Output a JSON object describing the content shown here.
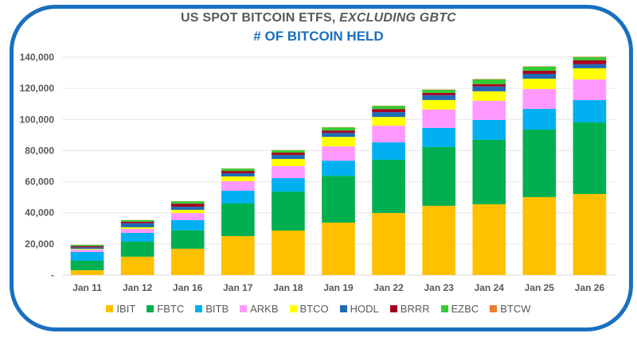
{
  "chart_data": {
    "type": "bar",
    "stacked": true,
    "title": "US SPOT BITCOIN ETFS,",
    "title_italic": "EXCLUDING GBTC",
    "subtitle": "# OF BITCOIN HELD",
    "xlabel": "",
    "ylabel": "",
    "ylim": [
      0,
      140000
    ],
    "yticks": [
      0,
      20000,
      40000,
      60000,
      80000,
      100000,
      120000,
      140000
    ],
    "ytick_labels": [
      "-",
      "20,000",
      "40,000",
      "60,000",
      "80,000",
      "100,000",
      "120,000",
      "140,000"
    ],
    "grid": true,
    "legend_position": "bottom",
    "categories": [
      "Jan 11",
      "Jan 12",
      "Jan 16",
      "Jan 17",
      "Jan 18",
      "Jan 19",
      "Jan 22",
      "Jan 23",
      "Jan 24",
      "Jan 25",
      "Jan 26"
    ],
    "series": [
      {
        "name": "IBIT",
        "color": "#ffc000",
        "values": [
          3100,
          11800,
          16900,
          25000,
          28600,
          33700,
          39900,
          44500,
          45500,
          50100,
          52100
        ]
      },
      {
        "name": "FBTC",
        "color": "#00b050",
        "values": [
          6100,
          9700,
          11800,
          21000,
          25000,
          30100,
          34200,
          37800,
          41400,
          43400,
          46000
        ]
      },
      {
        "name": "BITB",
        "color": "#00b0f0",
        "values": [
          5600,
          5600,
          6600,
          8200,
          8700,
          9700,
          11200,
          12300,
          12800,
          13300,
          14300
        ]
      },
      {
        "name": "ARKB",
        "color": "#ff99ff",
        "values": [
          1500,
          2600,
          4600,
          6100,
          7700,
          9200,
          10700,
          11800,
          12300,
          12800,
          13300
        ]
      },
      {
        "name": "BTCO",
        "color": "#ffff00",
        "values": [
          500,
          1000,
          2000,
          3100,
          4600,
          6100,
          5600,
          6100,
          6100,
          6600,
          7200
        ]
      },
      {
        "name": "HODL",
        "color": "#1f6bb5",
        "values": [
          1000,
          2600,
          2000,
          2000,
          2600,
          2600,
          3100,
          3100,
          3100,
          3100,
          2600
        ]
      },
      {
        "name": "BRRR",
        "color": "#a50021",
        "values": [
          800,
          1000,
          2000,
          1500,
          1500,
          1500,
          2000,
          1500,
          1500,
          2000,
          2600
        ]
      },
      {
        "name": "EZBC",
        "color": "#33cc33",
        "values": [
          800,
          1000,
          1500,
          1500,
          1500,
          2000,
          2000,
          2000,
          3100,
          2600,
          2000
        ]
      },
      {
        "name": "BTCW",
        "color": "#ed7d31",
        "values": [
          50,
          100,
          100,
          150,
          150,
          200,
          200,
          200,
          250,
          250,
          300
        ]
      }
    ]
  }
}
